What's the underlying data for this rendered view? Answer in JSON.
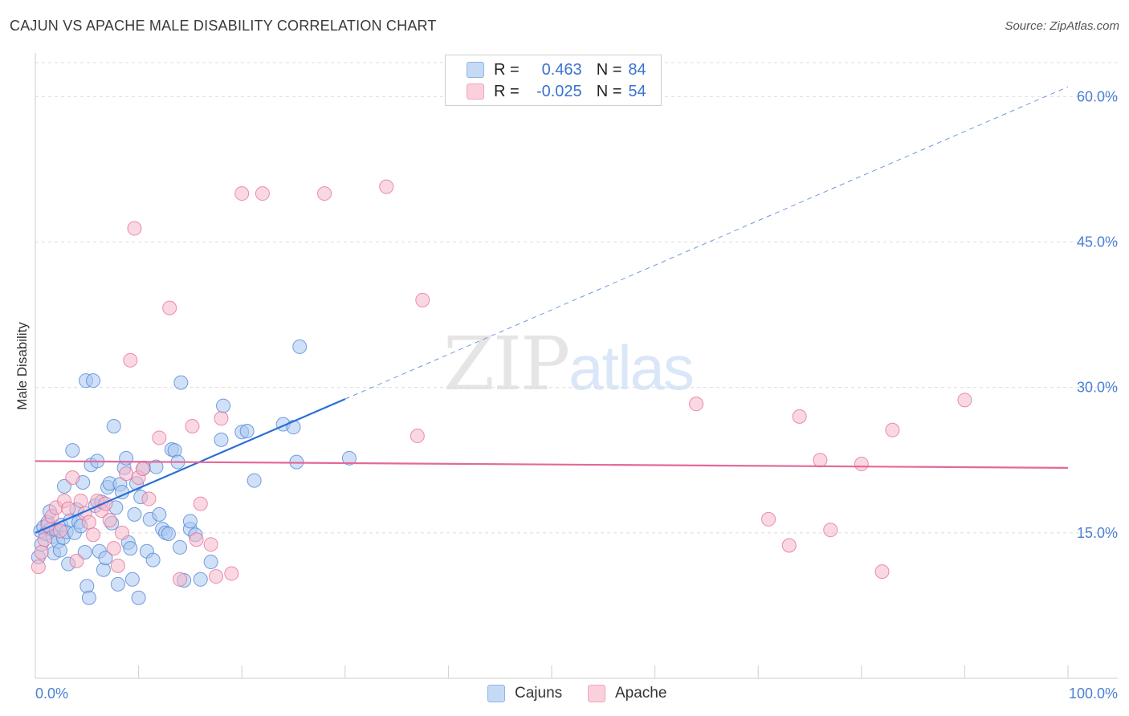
{
  "title": "CAJUN VS APACHE MALE DISABILITY CORRELATION CHART",
  "source": "Source: ZipAtlas.com",
  "watermark": {
    "zip": "ZIP",
    "atlas": "atlas"
  },
  "legend": {
    "rows": [
      {
        "r_label": "R =",
        "r_value": "0.463",
        "n_label": "N =",
        "n_value": "84",
        "color": "#a9c8f0"
      },
      {
        "r_label": "R =",
        "r_value": "-0.025",
        "n_label": "N =",
        "n_value": "54",
        "color": "#f5b8cb"
      }
    ]
  },
  "bottom_legend": [
    {
      "label": "Cajuns",
      "color": "#a9c8f0"
    },
    {
      "label": "Apache",
      "color": "#f5b8cb"
    }
  ],
  "chart_data": {
    "type": "scatter",
    "title": "CAJUN VS APACHE MALE DISABILITY CORRELATION CHART",
    "ylabel": "Male Disability",
    "xlabel": "",
    "xlim": [
      0,
      100
    ],
    "ylim": [
      0,
      63.5
    ],
    "x_tick_labels": [
      "0.0%",
      "100.0%"
    ],
    "y_ticks": [
      15,
      30,
      45,
      60
    ],
    "y_tick_labels": [
      "15.0%",
      "30.0%",
      "45.0%",
      "60.0%"
    ],
    "grid": "horizontal dashed",
    "series": [
      {
        "name": "Cajuns",
        "color": "#4a7fd4",
        "fill": "#a9c8f0",
        "trend": {
          "x0": 0,
          "y0": 15.0,
          "x1": 30,
          "y1": 28.8,
          "dashed_to_x": 100,
          "dashed_to_y": 61.0
        },
        "points": [
          [
            0.3,
            12.5
          ],
          [
            0.5,
            15.2
          ],
          [
            0.6,
            13.8
          ],
          [
            0.8,
            15.6
          ],
          [
            1.0,
            14.9
          ],
          [
            1.2,
            16.1
          ],
          [
            1.4,
            17.2
          ],
          [
            1.5,
            15.4
          ],
          [
            1.7,
            14.6
          ],
          [
            1.8,
            12.9
          ],
          [
            2.0,
            15.3
          ],
          [
            2.2,
            14.1
          ],
          [
            2.4,
            13.2
          ],
          [
            2.5,
            15.8
          ],
          [
            2.7,
            14.5
          ],
          [
            2.8,
            19.8
          ],
          [
            3.0,
            15.1
          ],
          [
            3.2,
            11.8
          ],
          [
            3.4,
            16.3
          ],
          [
            3.6,
            23.5
          ],
          [
            3.8,
            15.0
          ],
          [
            4.0,
            17.4
          ],
          [
            4.2,
            16.1
          ],
          [
            4.4,
            15.7
          ],
          [
            4.6,
            20.2
          ],
          [
            4.8,
            13.0
          ],
          [
            4.9,
            30.7
          ],
          [
            5.0,
            9.5
          ],
          [
            5.2,
            8.3
          ],
          [
            5.4,
            22.0
          ],
          [
            5.6,
            30.7
          ],
          [
            5.8,
            17.8
          ],
          [
            6.0,
            22.4
          ],
          [
            6.2,
            13.1
          ],
          [
            6.4,
            18.2
          ],
          [
            6.6,
            11.2
          ],
          [
            6.8,
            12.4
          ],
          [
            7.0,
            19.7
          ],
          [
            7.2,
            20.1
          ],
          [
            7.4,
            16.0
          ],
          [
            7.6,
            26.0
          ],
          [
            7.8,
            17.6
          ],
          [
            8.0,
            9.7
          ],
          [
            8.2,
            20.0
          ],
          [
            8.4,
            19.2
          ],
          [
            8.6,
            21.7
          ],
          [
            8.8,
            22.7
          ],
          [
            9.0,
            14.0
          ],
          [
            9.2,
            13.4
          ],
          [
            9.4,
            10.2
          ],
          [
            9.6,
            16.9
          ],
          [
            9.8,
            20.1
          ],
          [
            10.0,
            8.3
          ],
          [
            10.2,
            18.7
          ],
          [
            10.5,
            21.7
          ],
          [
            10.8,
            13.1
          ],
          [
            11.1,
            16.4
          ],
          [
            11.4,
            12.2
          ],
          [
            11.7,
            21.8
          ],
          [
            12.0,
            16.9
          ],
          [
            12.3,
            15.4
          ],
          [
            12.6,
            15.0
          ],
          [
            12.9,
            14.9
          ],
          [
            13.2,
            23.6
          ],
          [
            13.5,
            23.5
          ],
          [
            13.8,
            22.3
          ],
          [
            14.1,
            30.5
          ],
          [
            14.4,
            10.1
          ],
          [
            15.0,
            15.4
          ],
          [
            15.5,
            14.8
          ],
          [
            15.0,
            16.2
          ],
          [
            14.0,
            13.5
          ],
          [
            16.0,
            10.2
          ],
          [
            17.0,
            12.0
          ],
          [
            18.0,
            24.6
          ],
          [
            18.2,
            28.1
          ],
          [
            20.0,
            25.4
          ],
          [
            20.5,
            25.5
          ],
          [
            21.2,
            20.4
          ],
          [
            24.0,
            26.2
          ],
          [
            25.0,
            25.9
          ],
          [
            25.3,
            22.3
          ],
          [
            30.4,
            22.7
          ],
          [
            25.6,
            34.2
          ]
        ]
      },
      {
        "name": "Apache",
        "color": "#e46a93",
        "fill": "#f5b8cb",
        "trend": {
          "x0": 0,
          "y0": 22.4,
          "x1": 100,
          "y1": 21.7
        },
        "points": [
          [
            0.3,
            11.5
          ],
          [
            0.6,
            13.0
          ],
          [
            0.9,
            14.3
          ],
          [
            1.2,
            15.8
          ],
          [
            1.6,
            16.7
          ],
          [
            2.0,
            17.6
          ],
          [
            2.4,
            15.2
          ],
          [
            2.8,
            18.3
          ],
          [
            3.2,
            17.5
          ],
          [
            3.6,
            20.7
          ],
          [
            4.0,
            12.1
          ],
          [
            4.4,
            18.3
          ],
          [
            4.8,
            17.0
          ],
          [
            5.2,
            16.1
          ],
          [
            5.6,
            14.8
          ],
          [
            6.0,
            18.3
          ],
          [
            6.4,
            17.3
          ],
          [
            6.8,
            18.0
          ],
          [
            7.2,
            16.3
          ],
          [
            7.6,
            13.4
          ],
          [
            8.0,
            11.6
          ],
          [
            8.4,
            15.0
          ],
          [
            8.8,
            21.1
          ],
          [
            9.2,
            32.8
          ],
          [
            9.6,
            46.4
          ],
          [
            10.0,
            20.7
          ],
          [
            10.4,
            21.6
          ],
          [
            11.0,
            18.5
          ],
          [
            12.0,
            24.8
          ],
          [
            13.0,
            38.2
          ],
          [
            14.0,
            10.2
          ],
          [
            15.2,
            26.0
          ],
          [
            15.6,
            14.3
          ],
          [
            16.0,
            18.0
          ],
          [
            17.0,
            13.8
          ],
          [
            17.5,
            10.5
          ],
          [
            18.0,
            26.8
          ],
          [
            19.0,
            10.8
          ],
          [
            20.0,
            50.0
          ],
          [
            22.0,
            50.0
          ],
          [
            28.0,
            50.0
          ],
          [
            34.0,
            50.7
          ],
          [
            37.0,
            25.0
          ],
          [
            37.5,
            39.0
          ],
          [
            64.0,
            28.3
          ],
          [
            71.0,
            16.4
          ],
          [
            73.0,
            13.7
          ],
          [
            74.0,
            27.0
          ],
          [
            76.0,
            22.5
          ],
          [
            77.0,
            15.3
          ],
          [
            80.0,
            22.1
          ],
          [
            82.0,
            11.0
          ],
          [
            83.0,
            25.6
          ],
          [
            90.0,
            28.7
          ]
        ]
      }
    ]
  }
}
